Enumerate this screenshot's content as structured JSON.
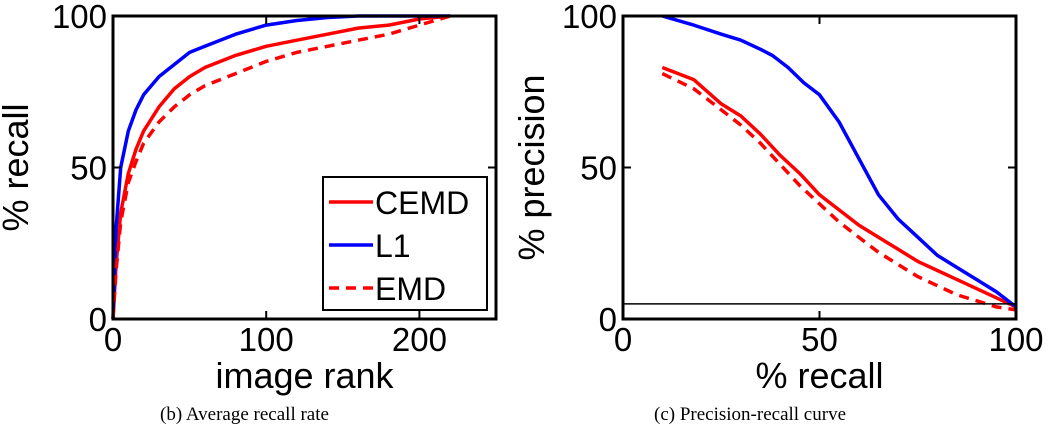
{
  "captions": {
    "left": "(b) Average recall rate",
    "right": "(c) Precision-recall curve"
  },
  "colors": {
    "CEMD": "#ff0000",
    "L1": "#0000ff",
    "EMD": "#ff0000",
    "baseline": "#000000"
  },
  "chart_data": [
    {
      "type": "line",
      "xlabel": "image rank",
      "ylabel": "% recall",
      "xlim": [
        0,
        250
      ],
      "ylim": [
        0,
        100
      ],
      "xticks": [
        0,
        100,
        200
      ],
      "yticks": [
        0,
        50,
        100
      ],
      "grid": false,
      "legend": {
        "placement": "bottom-right",
        "entries": [
          "CEMD",
          "L1",
          "EMD"
        ]
      },
      "series": [
        {
          "name": "CEMD",
          "style": "solid",
          "color": "#ff0000",
          "x": [
            0,
            2,
            5,
            10,
            15,
            20,
            30,
            40,
            50,
            60,
            80,
            100,
            120,
            140,
            160,
            180,
            200,
            220
          ],
          "y": [
            0,
            18,
            35,
            48,
            56,
            62,
            70,
            76,
            80,
            83,
            87,
            90,
            92,
            94,
            96,
            97,
            99,
            100
          ]
        },
        {
          "name": "L1",
          "style": "solid",
          "color": "#0000ff",
          "x": [
            0,
            2,
            5,
            10,
            15,
            20,
            30,
            40,
            50,
            60,
            80,
            100,
            120,
            140,
            160,
            180,
            200,
            220
          ],
          "y": [
            0,
            30,
            50,
            62,
            69,
            74,
            80,
            84,
            88,
            90,
            94,
            97,
            98.5,
            99.5,
            100,
            100,
            100,
            100
          ]
        },
        {
          "name": "EMD",
          "style": "dashed",
          "color": "#ff0000",
          "x": [
            0,
            2,
            5,
            10,
            15,
            20,
            30,
            40,
            50,
            60,
            80,
            100,
            120,
            140,
            160,
            180,
            200,
            220
          ],
          "y": [
            0,
            16,
            32,
            45,
            52,
            58,
            65,
            70,
            74,
            77,
            81,
            85,
            88,
            90,
            92,
            94,
            97,
            100
          ]
        }
      ]
    },
    {
      "type": "line",
      "xlabel": "% recall",
      "ylabel": "% precision",
      "xlim": [
        0,
        100
      ],
      "ylim": [
        0,
        100
      ],
      "xticks": [
        0,
        50,
        100
      ],
      "yticks": [
        0,
        50,
        100
      ],
      "grid": false,
      "series": [
        {
          "name": "CEMD",
          "style": "solid",
          "color": "#ff0000",
          "x": [
            10,
            18,
            25,
            30,
            35,
            40,
            45,
            50,
            55,
            60,
            65,
            70,
            75,
            80,
            85,
            90,
            95,
            100
          ],
          "y": [
            83,
            79,
            71,
            67,
            61,
            54,
            48,
            41,
            36,
            31,
            27,
            23,
            19,
            16,
            13,
            10,
            7,
            4
          ]
        },
        {
          "name": "L1",
          "style": "solid",
          "color": "#0000ff",
          "x": [
            10,
            18,
            25,
            30,
            35,
            38,
            42,
            46,
            50,
            55,
            60,
            65,
            70,
            75,
            80,
            85,
            90,
            95,
            100
          ],
          "y": [
            100,
            97,
            94,
            92,
            89,
            87,
            83,
            78,
            74,
            65,
            53,
            41,
            33,
            27,
            21,
            17,
            13,
            9,
            4
          ]
        },
        {
          "name": "EMD",
          "style": "dashed",
          "color": "#ff0000",
          "x": [
            10,
            18,
            25,
            30,
            35,
            40,
            45,
            50,
            55,
            60,
            65,
            70,
            75,
            80,
            85,
            90,
            95,
            100
          ],
          "y": [
            81,
            76,
            69,
            64,
            58,
            51,
            44,
            38,
            32,
            27,
            22,
            18,
            14,
            11,
            8,
            6,
            4,
            3
          ]
        },
        {
          "name": "",
          "style": "thin",
          "color": "#000000",
          "x": [
            0,
            100
          ],
          "y": [
            5,
            5
          ]
        }
      ]
    }
  ]
}
